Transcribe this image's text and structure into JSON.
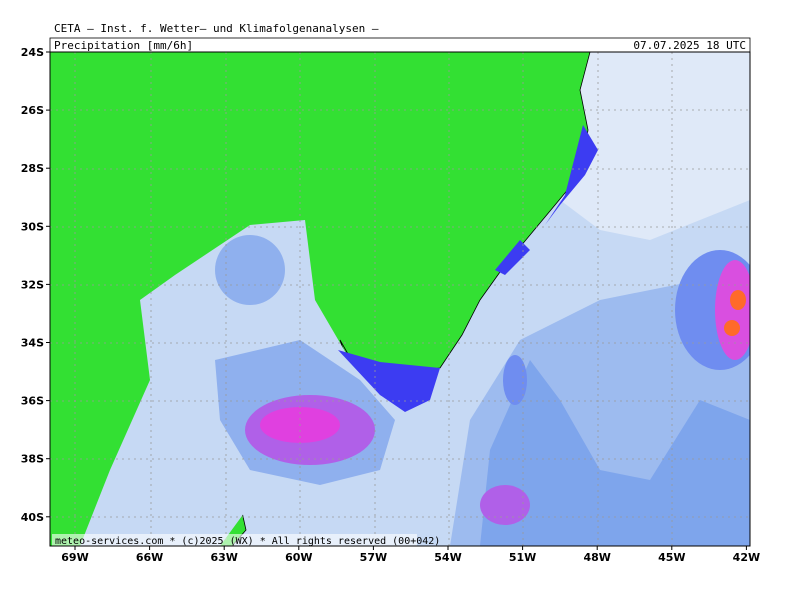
{
  "header": {
    "title": "CETA — Inst. f. Wetter— und Klimafolgenanalysen —",
    "product": "Precipitation [mm/6h]",
    "valid_time": "07.07.2025 18 UTC"
  },
  "map": {
    "lat_labels": [
      "24S",
      "26S",
      "28S",
      "30S",
      "32S",
      "34S",
      "36S",
      "38S",
      "40S"
    ],
    "lon_labels": [
      "69W",
      "66W",
      "63W",
      "60W",
      "57W",
      "54W",
      "51W",
      "48W",
      "45W",
      "42W"
    ]
  },
  "footer": "meteo-services.com * (c)2025 (WX) * All rights reserved (00+042)"
}
